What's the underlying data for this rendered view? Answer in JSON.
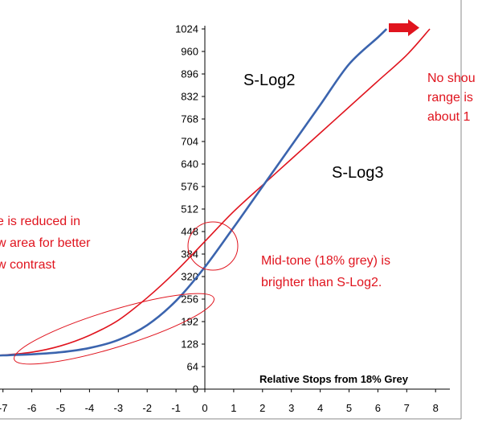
{
  "chart_data": {
    "type": "line",
    "title": "",
    "xlabel": "Relative Stops from 18% Grey",
    "ylabel": "",
    "xlim": [
      -7.5,
      8.3
    ],
    "ylim": [
      0,
      1024
    ],
    "x_ticks": [
      -7,
      -6,
      -5,
      -4,
      -3,
      -2,
      -1,
      0,
      1,
      2,
      3,
      4,
      5,
      6,
      7,
      8
    ],
    "y_ticks": [
      0,
      64,
      128,
      192,
      256,
      320,
      384,
      448,
      512,
      576,
      640,
      704,
      768,
      832,
      896,
      960,
      1024
    ],
    "series": [
      {
        "name": "S-Log2",
        "color": "#3b64ae",
        "x": [
          -7.5,
          -7,
          -6,
          -5,
          -4,
          -3,
          -2,
          -1,
          0,
          1,
          2,
          3,
          4,
          5,
          6,
          6.3
        ],
        "y": [
          95,
          96,
          99,
          105,
          117,
          140,
          182,
          251,
          347,
          460,
          576,
          692,
          808,
          924,
          1000,
          1024
        ]
      },
      {
        "name": "S-Log3",
        "color": "#e0141e",
        "x": [
          -7.5,
          -7,
          -6,
          -5,
          -4,
          -3,
          -2,
          -1,
          0,
          1,
          2,
          3,
          4,
          5,
          6,
          7,
          7.8
        ],
        "y": [
          96,
          97,
          105,
          123,
          153,
          196,
          260,
          335,
          420,
          505,
          580,
          654,
          728,
          802,
          876,
          950,
          1024
        ]
      }
    ],
    "grid": false,
    "annotations": [
      {
        "lines": [
          "No shou",
          "range is",
          "about 1"
        ]
      },
      {
        "lines": [
          "e is reduced in",
          "w area for better",
          "w contrast"
        ]
      },
      {
        "lines": [
          "Mid-tone (18% grey) is",
          "brighter than S-Log2."
        ]
      }
    ]
  },
  "colors": {
    "slog2": "#3b64ae",
    "slog3": "#e0141e",
    "annotation": "#e0141e",
    "axis": "#000000"
  }
}
